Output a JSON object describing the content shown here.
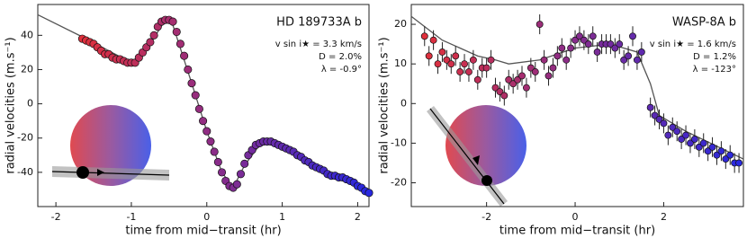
{
  "chart_data": [
    {
      "type": "scatter",
      "xlabel": "time from mid−transit (hr)",
      "ylabel": "radial velocities (m.s⁻¹)",
      "annotations": [
        "HD 189733A b",
        "v sin i★ = 3.3 km/s",
        "D = 2.0%",
        "λ = -0.9°"
      ],
      "xlim": [
        -2.24,
        2.15
      ],
      "ylim": [
        -60,
        58
      ],
      "xticks": [
        -2,
        -1,
        0,
        1,
        2
      ],
      "yticks": [
        -40,
        -20,
        0,
        20,
        40
      ],
      "colormap": [
        "#e0303c",
        "#2828e0"
      ],
      "model_color": "#555555",
      "x": [
        -1.65,
        -1.6,
        -1.55,
        -1.5,
        -1.45,
        -1.4,
        -1.35,
        -1.3,
        -1.25,
        -1.2,
        -1.15,
        -1.1,
        -1.05,
        -1.0,
        -0.95,
        -0.9,
        -0.85,
        -0.8,
        -0.75,
        -0.7,
        -0.65,
        -0.6,
        -0.55,
        -0.5,
        -0.45,
        -0.4,
        -0.35,
        -0.3,
        -0.25,
        -0.2,
        -0.15,
        -0.1,
        -0.05,
        0,
        0.05,
        0.1,
        0.15,
        0.2,
        0.25,
        0.3,
        0.35,
        0.4,
        0.45,
        0.5,
        0.55,
        0.6,
        0.65,
        0.7,
        0.75,
        0.8,
        0.85,
        0.9,
        0.95,
        1.0,
        1.05,
        1.1,
        1.15,
        1.2,
        1.25,
        1.3,
        1.35,
        1.4,
        1.45,
        1.5,
        1.55,
        1.6,
        1.65,
        1.7,
        1.75,
        1.8,
        1.85,
        1.9,
        1.95,
        2.0,
        2.05,
        2.1,
        2.15
      ],
      "values": [
        38,
        37,
        36,
        35,
        33,
        31,
        29,
        29,
        27,
        26,
        26,
        25,
        24,
        24,
        24,
        27,
        30,
        33,
        36,
        40,
        45,
        48,
        49,
        49,
        48,
        42,
        35,
        28,
        20,
        12,
        5,
        -3,
        -10,
        -16,
        -22,
        -28,
        -34,
        -40,
        -45,
        -48,
        -49,
        -47,
        -41,
        -35,
        -30,
        -27,
        -24,
        -23,
        -22,
        -22,
        -22,
        -23,
        -24,
        -25,
        -26,
        -27,
        -28,
        -30,
        -31,
        -33,
        -34,
        -36,
        -37,
        -38,
        -39,
        -41,
        -42,
        -42,
        -43,
        -43,
        -44,
        -45,
        -46,
        -48,
        -49,
        -51,
        -52
      ],
      "model": {
        "x": [
          -2.24,
          -1.6,
          -1.0,
          -0.85,
          -0.55,
          -0.45,
          -0.2,
          0,
          0.2,
          0.35,
          0.5,
          0.7,
          0.85,
          1.2,
          1.6,
          2.15
        ],
        "values": [
          52,
          38,
          24,
          28,
          49,
          46,
          12,
          -16,
          -40,
          -49,
          -36,
          -24,
          -22,
          -29,
          -40,
          -52
        ]
      }
    },
    {
      "type": "scatter",
      "xlabel": "time from mid−transit (hr)",
      "ylabel": "radial velocities (m.s⁻¹)",
      "annotations": [
        "WASP-8A b",
        "v sin i★ = 1.6 km/s",
        "D = 1.2%",
        "λ = -123°"
      ],
      "xlim": [
        -3.7,
        3.8
      ],
      "ylim": [
        -26,
        25
      ],
      "xticks": [
        -2,
        0,
        2
      ],
      "yticks": [
        -20,
        -10,
        0,
        10,
        20
      ],
      "colormap": [
        "#e0303c",
        "#2828e0"
      ],
      "model_color": "#555555",
      "error": 2.5,
      "x": [
        -3.4,
        -3.3,
        -3.2,
        -3.1,
        -3.0,
        -2.9,
        -2.8,
        -2.7,
        -2.6,
        -2.5,
        -2.4,
        -2.3,
        -2.2,
        -2.1,
        -2.0,
        -1.9,
        -1.8,
        -1.7,
        -1.6,
        -1.5,
        -1.4,
        -1.3,
        -1.2,
        -1.1,
        -1.0,
        -0.9,
        -0.8,
        -0.7,
        -0.6,
        -0.5,
        -0.4,
        -0.3,
        -0.2,
        -0.1,
        0,
        0.1,
        0.2,
        0.3,
        0.4,
        0.5,
        0.6,
        0.7,
        0.8,
        0.9,
        1.0,
        1.1,
        1.2,
        1.3,
        1.4,
        1.5,
        1.7,
        1.8,
        1.9,
        2.0,
        2.1,
        2.2,
        2.3,
        2.4,
        2.5,
        2.6,
        2.7,
        2.8,
        2.9,
        3.0,
        3.1,
        3.2,
        3.3,
        3.4,
        3.5,
        3.6,
        3.7
      ],
      "values": [
        17,
        12,
        16,
        10,
        13,
        11,
        10,
        12,
        8,
        10,
        8,
        11,
        6,
        9,
        9,
        11,
        4,
        3,
        2,
        6,
        5,
        6,
        7,
        4,
        9,
        8,
        20,
        11,
        7,
        9,
        12,
        14,
        11,
        14,
        16,
        17,
        16,
        15,
        17,
        13,
        15,
        15,
        15,
        14,
        15,
        11,
        12,
        17,
        11,
        13,
        -1,
        -3,
        -4,
        -5,
        -8,
        -6,
        -7,
        -9,
        -8,
        -10,
        -9,
        -11,
        -10,
        -12,
        -11,
        -13,
        -12,
        -14,
        -13,
        -15,
        -15
      ],
      "model": {
        "x": [
          -3.7,
          -3.0,
          -2.2,
          -1.8,
          -1.5,
          -0.8,
          0,
          0.8,
          1.4,
          1.7,
          1.9,
          2.5,
          3.8
        ],
        "values": [
          22,
          16,
          12,
          11,
          10,
          11,
          14,
          15,
          13,
          5,
          -3,
          -7,
          -14
        ]
      }
    }
  ]
}
